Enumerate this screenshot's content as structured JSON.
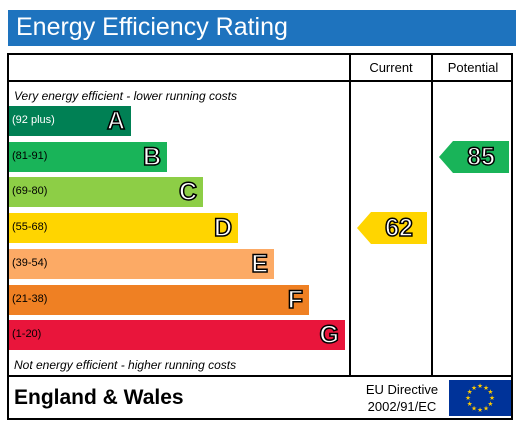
{
  "chart_data": {
    "type": "bar",
    "title": "Energy Efficiency Rating",
    "columns": [
      "Current",
      "Potential"
    ],
    "top_note": "Very energy efficient - lower running costs",
    "bottom_note": "Not energy efficient - higher running costs",
    "bands": [
      {
        "letter": "A",
        "range": "(92 plus)",
        "color": "#008054"
      },
      {
        "letter": "B",
        "range": "(81-91)",
        "color": "#19b459"
      },
      {
        "letter": "C",
        "range": "(69-80)",
        "color": "#8dce46"
      },
      {
        "letter": "D",
        "range": "(55-68)",
        "color": "#ffd500"
      },
      {
        "letter": "E",
        "range": "(39-54)",
        "color": "#fcaa65"
      },
      {
        "letter": "F",
        "range": "(21-38)",
        "color": "#ef8023"
      },
      {
        "letter": "G",
        "range": "(1-20)",
        "color": "#e9153b"
      }
    ],
    "current": {
      "value": 62,
      "band": "D",
      "color": "#ffd500"
    },
    "potential": {
      "value": 85,
      "band": "B",
      "color": "#19b459"
    }
  },
  "footer": {
    "region": "England & Wales",
    "directive_line1": "EU Directive",
    "directive_line2": "2002/91/EC"
  },
  "colors": {
    "title_bar": "#1e73be",
    "flag_blue": "#003399",
    "flag_star": "#ffcc00"
  }
}
